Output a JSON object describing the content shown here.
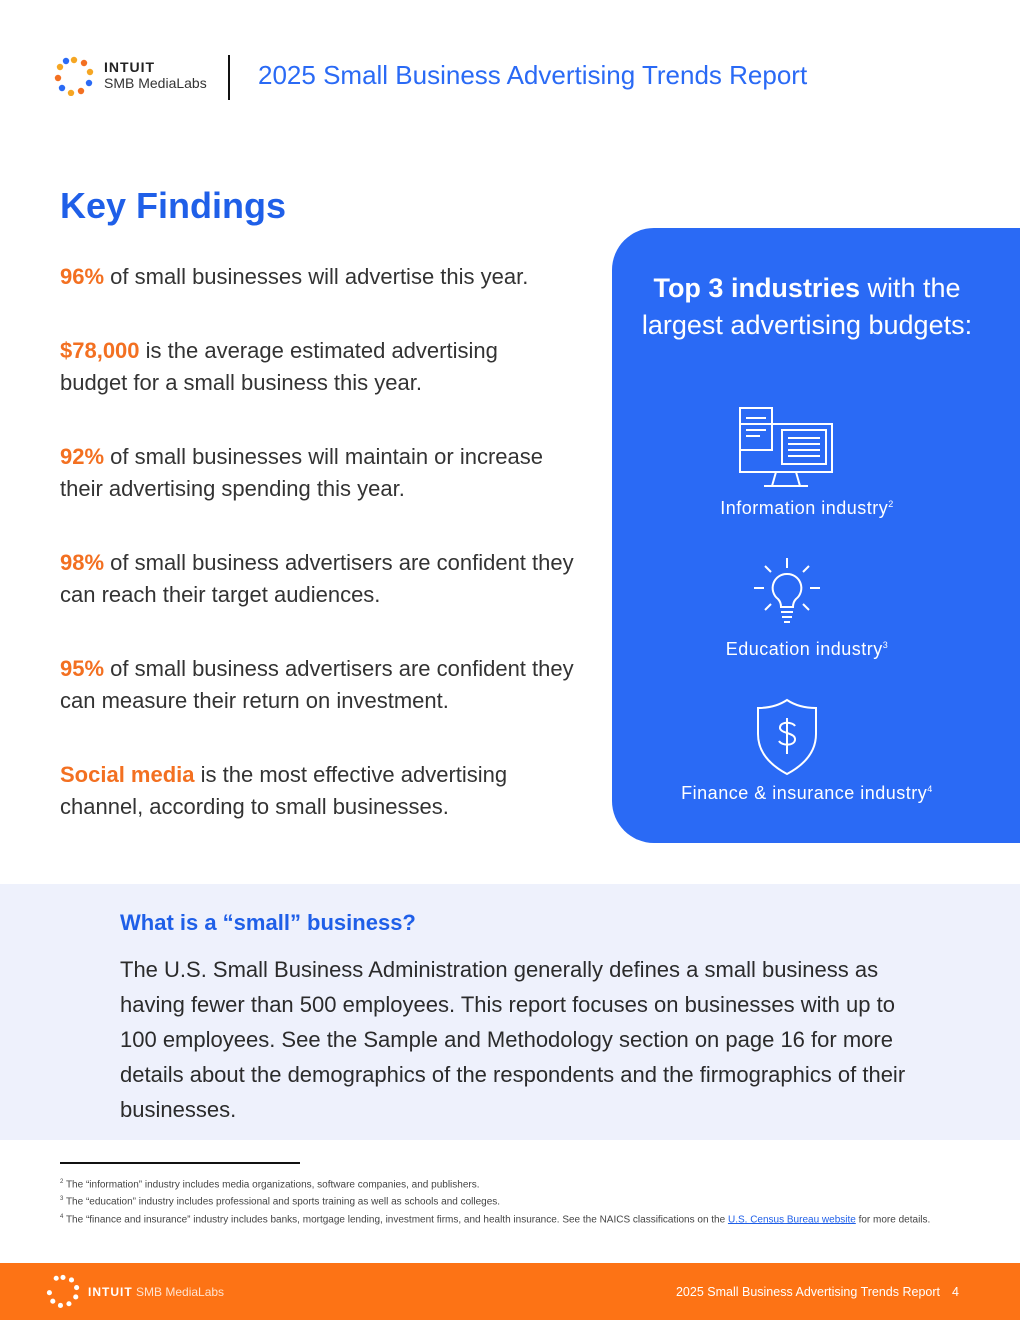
{
  "header": {
    "logo_brand": "INTUIT",
    "logo_sub": "SMB MediaLabs",
    "title": "2025 Small Business Advertising Trends Report"
  },
  "key_findings": {
    "title": "Key Findings",
    "items": [
      {
        "highlight": "96%",
        "text": " of small businesses will advertise this year."
      },
      {
        "highlight": "$78,000",
        "text": " is the average estimated advertising budget for a small business this year."
      },
      {
        "highlight": "92%",
        "text": " of small businesses will maintain or increase their advertising spending this year."
      },
      {
        "highlight": "98%",
        "text": " of small business advertisers are confident they can reach their target audiences."
      },
      {
        "highlight": "95%",
        "text": " of small business advertisers are confident they can measure their return on investment."
      },
      {
        "highlight": "Social media",
        "text": " is the most effective advertising channel, according to small businesses."
      }
    ]
  },
  "industries": {
    "title_bold": "Top 3 industries",
    "title_rest": " with the largest advertising budgets:",
    "items": [
      {
        "label": "Information industry",
        "note": "2",
        "icon": "computer-documents-icon"
      },
      {
        "label": "Education industry",
        "note": "3",
        "icon": "lightbulb-icon"
      },
      {
        "label": "Finance & insurance industry",
        "note": "4",
        "icon": "shield-dollar-icon"
      }
    ]
  },
  "small_business": {
    "question": "What is a “small” business?",
    "body": "The U.S. Small Business Administration generally defines a small business as having fewer than 500 employees. This report focuses on businesses with up to 100 employees. See the Sample and Methodology section on page 16 for more details about the demographics of the respondents and the firmographics of their businesses."
  },
  "footnotes": [
    {
      "num": "2",
      "text": "The “information” industry includes media organizations, software companies, and publishers."
    },
    {
      "num": "3",
      "text": "The “education” industry includes professional and sports training as well as schools and colleges."
    },
    {
      "num": "4",
      "text": " The “finance and insurance” industry includes banks, mortgage lending, investment firms, and health insurance. See the NAICS classifications on the ",
      "link": "U.S. Census Bureau website",
      "after": " for more details."
    }
  ],
  "footer": {
    "brand": "INTUIT",
    "sub": "SMB MediaLabs",
    "title": "2025 Small Business Advertising Trends Report",
    "page": "4"
  },
  "colors": {
    "blue": "#2a6af5",
    "orange": "#f37021",
    "footer": "#fd7315",
    "light": "#eef1fc"
  }
}
